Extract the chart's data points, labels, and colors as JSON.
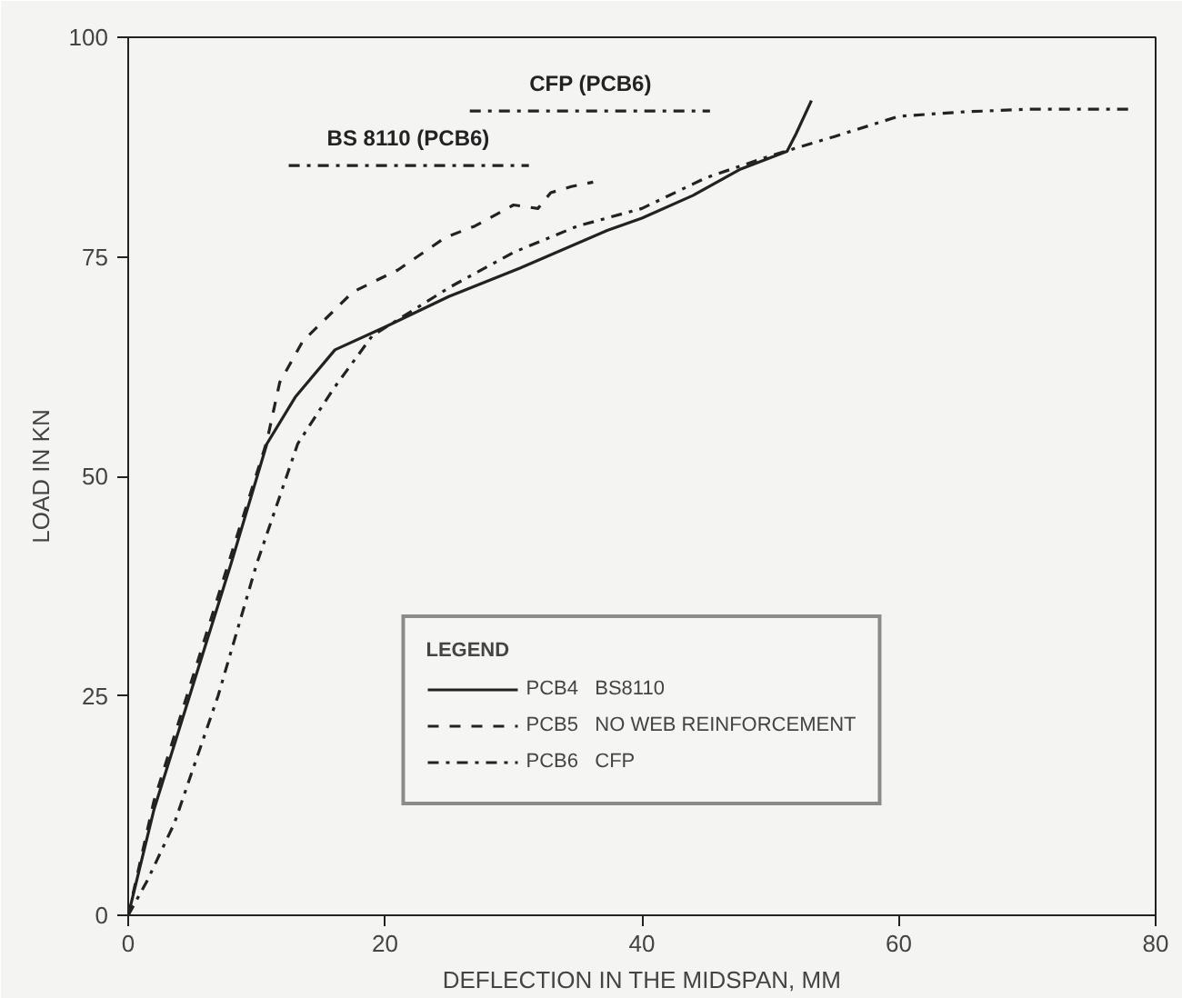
{
  "chart_data": {
    "type": "line",
    "xlabel": "DEFLECTION IN THE MIDSPAN, MM",
    "ylabel": "LOAD IN KN",
    "legend_title": "LEGEND",
    "legend": "bottom",
    "grid": false,
    "marker": "none",
    "xlim": [
      0,
      80
    ],
    "ylim": [
      0,
      100
    ],
    "xticks": [
      0,
      20,
      40,
      60,
      80
    ],
    "yticks": [
      0,
      25,
      50,
      75,
      100
    ],
    "series": [
      {
        "name": "PCB4   BS8110",
        "color": "#222222",
        "line_style": "solid",
        "x": [
          0,
          2,
          5,
          8,
          10.8,
          13,
          16.1,
          20,
          25,
          30.5,
          37.3,
          40,
          44,
          47.7,
          51.3,
          52,
          53.2
        ],
        "values": [
          0,
          12,
          26,
          40,
          53.7,
          59,
          64.4,
          67,
          70.5,
          73.7,
          78,
          79.4,
          82,
          85,
          87,
          89,
          92.8
        ]
      },
      {
        "name": "PCB5   NO WEB REINFORCEMENT",
        "color": "#222222",
        "line_style": "dashed",
        "x": [
          0,
          2,
          5,
          8,
          10.8,
          11.8,
          13.6,
          17.5,
          21,
          24.7,
          27,
          30,
          31.9,
          32.9,
          34.5,
          36.2
        ],
        "values": [
          0,
          13,
          27,
          41,
          54,
          60.7,
          65.4,
          71,
          73.5,
          77.2,
          78.5,
          80.9,
          80.5,
          82.3,
          83,
          83.5
        ]
      },
      {
        "name": "PCB6   CFP",
        "color": "#222222",
        "line_style": "dashdot",
        "x": [
          0,
          1.5,
          3.6,
          7,
          10,
          13.2,
          16,
          19,
          25,
          30,
          35,
          40,
          45,
          50,
          55,
          60,
          65,
          70,
          77.9
        ],
        "values": [
          0,
          4,
          10.5,
          25,
          40,
          53.7,
          60,
          66,
          71.5,
          75.5,
          78.5,
          80.5,
          84,
          86.5,
          88.7,
          91,
          91.5,
          91.8,
          91.8
        ]
      },
      {
        "color": "#222222",
        "line_style": "dashdot",
        "x": [
          26.6,
          45.3
        ],
        "values": [
          91.6,
          91.6
        ]
      },
      {
        "color": "#222222",
        "line_style": "dashdot",
        "x": [
          12.5,
          31.2
        ],
        "values": [
          85.4,
          85.4
        ]
      }
    ],
    "annotations": [
      {
        "text": "CFP (PCB6)",
        "x": 36,
        "y": 91.6
      },
      {
        "text": "BS 8110 (PCB6)",
        "x": 21.8,
        "y": 85.4
      }
    ]
  }
}
